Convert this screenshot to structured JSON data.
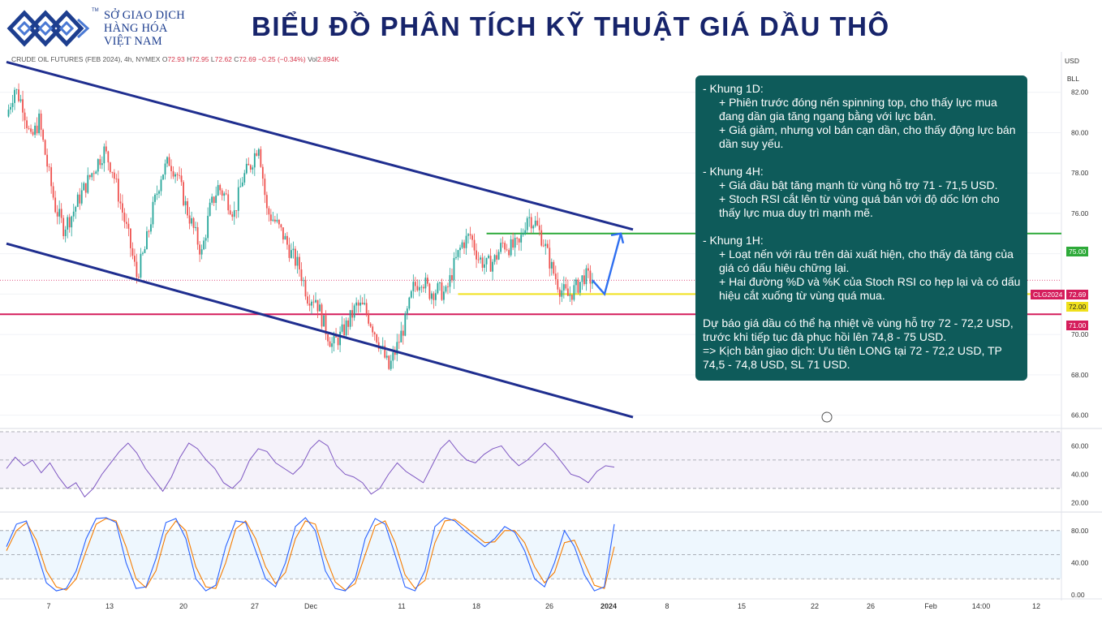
{
  "header": {
    "logo_lines": [
      "SỞ GIAO DỊCH",
      "HÀNG HÓA",
      "VIỆT NAM"
    ],
    "logo_tm": "TM",
    "title": "BIỂU ĐỒ PHÂN TÍCH KỸ THUẬT GIÁ DẦU THÔ"
  },
  "legend": {
    "symbol": "CRUDE OIL FUTURES (FEB 2024), 4h, NYMEX",
    "o_label": "O",
    "o": "72.93",
    "h_label": "H",
    "h": "72.95",
    "l_label": "L",
    "l": "72.62",
    "c_label": "C",
    "c": "72.69",
    "change": "−0.25 (−0.34%)",
    "vol_label": "Vol",
    "vol": "2.894K"
  },
  "scale_badges": {
    "currency": "USD",
    "indicator": "BLL"
  },
  "price_tags": {
    "symbol": "CLG2024",
    "last": "72.69",
    "green_level": "75.00",
    "yellow_level": "72.00",
    "red_level": "71.00"
  },
  "analysis_note": {
    "d1_title": "- Khung 1D:",
    "d1_points": [
      "+ Phiên trước đóng nến spinning top, cho thấy  lực mua đang dần gia tăng ngang bằng với lực bán.",
      "+ Giá giảm, nhưng vol bán cạn dần, cho thấy động lực bán dần suy yếu."
    ],
    "h4_title": "- Khung 4H:",
    "h4_points": [
      "+ Giá dầu bật tăng mạnh từ vùng hỗ trợ 71 - 71,5 USD.",
      "+ Stoch RSI cắt lên từ vùng quá bán với độ dốc lớn cho thấy lực mua duy trì mạnh mẽ."
    ],
    "h1_title": "- Khung 1H:",
    "h1_points": [
      "+ Loạt nến với râu trên dài xuất hiện, cho thấy đà tăng của giá có dấu hiệu chững lại.",
      "+ Hai đường %D và %K của Stoch RSI co hẹp lại và có dấu hiệu cắt xuống từ vùng quá mua."
    ],
    "forecast": "Dự báo giá dầu có thể hạ nhiệt về vùng hỗ trợ 72 - 72,2 USD, trước khi tiếp tục đà phục hồi lên 74,8 - 75 USD.",
    "plan": "=> Kịch bản giao dịch: Ưu tiên LONG tại 72 - 72,2 USD, TP 74,5 - 74,8 USD, SL 71 USD."
  },
  "chart_data": [
    {
      "type": "candlestick",
      "title": "CRUDE OIL FUTURES (FEB 2024), 4h, NYMEX",
      "x_ticks": [
        "7",
        "13",
        "20",
        "27",
        "Dec",
        "11",
        "18",
        "26",
        "2024",
        "8",
        "15",
        "22",
        "26",
        "Feb",
        "14:00",
        "12"
      ],
      "y_ticks": [
        66,
        68,
        70,
        72,
        74,
        76,
        78,
        80,
        82
      ],
      "ylim": [
        65.5,
        84.0
      ],
      "grid": true,
      "close_path": [
        [
          0,
          80.8
        ],
        [
          4,
          82.2
        ],
        [
          8,
          81.4
        ],
        [
          12,
          79.6
        ],
        [
          16,
          80.6
        ],
        [
          20,
          78.4
        ],
        [
          24,
          76.3
        ],
        [
          28,
          75.3
        ],
        [
          32,
          75.9
        ],
        [
          36,
          76.8
        ],
        [
          40,
          77.6
        ],
        [
          44,
          78.4
        ],
        [
          48,
          79.1
        ],
        [
          52,
          78.2
        ],
        [
          56,
          76.5
        ],
        [
          60,
          74.8
        ],
        [
          64,
          72.9
        ],
        [
          68,
          74.2
        ],
        [
          72,
          76.2
        ],
        [
          76,
          77.9
        ],
        [
          80,
          78.6
        ],
        [
          84,
          77.9
        ],
        [
          88,
          76.4
        ],
        [
          92,
          75.2
        ],
        [
          96,
          74.0
        ],
        [
          100,
          76.2
        ],
        [
          104,
          77.3
        ],
        [
          108,
          76.8
        ],
        [
          112,
          76.0
        ],
        [
          116,
          77.7
        ],
        [
          120,
          78.4
        ],
        [
          124,
          79.5
        ],
        [
          128,
          76.1
        ],
        [
          132,
          75.6
        ],
        [
          136,
          74.9
        ],
        [
          140,
          74.0
        ],
        [
          144,
          73.3
        ],
        [
          148,
          71.9
        ],
        [
          152,
          71.8
        ],
        [
          156,
          70.5
        ],
        [
          160,
          69.5
        ],
        [
          164,
          69.9
        ],
        [
          168,
          70.6
        ],
        [
          172,
          71.4
        ],
        [
          176,
          71.3
        ],
        [
          180,
          70.4
        ],
        [
          184,
          69.4
        ],
        [
          188,
          68.3
        ],
        [
          192,
          69.4
        ],
        [
          196,
          70.6
        ],
        [
          200,
          72.3
        ],
        [
          204,
          72.8
        ],
        [
          208,
          72.1
        ],
        [
          212,
          72.2
        ],
        [
          216,
          72.0
        ],
        [
          220,
          73.4
        ],
        [
          224,
          74.5
        ],
        [
          228,
          74.9
        ],
        [
          232,
          73.8
        ],
        [
          236,
          73.4
        ],
        [
          240,
          73.7
        ],
        [
          244,
          74.5
        ],
        [
          248,
          74.3
        ],
        [
          252,
          74.4
        ],
        [
          256,
          75.9
        ],
        [
          260,
          75.5
        ],
        [
          264,
          74.6
        ],
        [
          268,
          73.3
        ],
        [
          272,
          72.3
        ],
        [
          276,
          71.9
        ],
        [
          280,
          72.3
        ],
        [
          284,
          72.9
        ],
        [
          288,
          72.69
        ]
      ],
      "channel": {
        "upper": [
          [
            0,
            83.5
          ],
          [
            300,
            75.2
          ]
        ],
        "lower": [
          [
            0,
            74.5
          ],
          [
            300,
            65.9
          ]
        ]
      },
      "levels": [
        {
          "value": 75.0,
          "color": "#2eaa3a"
        },
        {
          "value": 72.0,
          "color": "#f0e01c"
        },
        {
          "value": 71.0,
          "color": "#d51d5c"
        }
      ],
      "last_price": 72.69,
      "forecast_path": [
        [
          288,
          72.69
        ],
        [
          294,
          72.0
        ],
        [
          302,
          75.0
        ]
      ]
    },
    {
      "type": "line",
      "name": "RSI",
      "y_ticks": [
        20,
        40,
        60
      ],
      "ylim": [
        15,
        70
      ],
      "bands": [
        30,
        50,
        70
      ],
      "color": "#7e57c2",
      "values": [
        44,
        52,
        46,
        50,
        41,
        48,
        38,
        30,
        34,
        24,
        30,
        40,
        48,
        56,
        62,
        55,
        44,
        36,
        28,
        38,
        52,
        62,
        58,
        50,
        44,
        34,
        30,
        36,
        50,
        58,
        56,
        48,
        44,
        40,
        46,
        58,
        64,
        60,
        46,
        40,
        38,
        34,
        26,
        30,
        40,
        48,
        42,
        38,
        34,
        46,
        58,
        64,
        56,
        50,
        48,
        54,
        58,
        60,
        52,
        46,
        50,
        56,
        62,
        56,
        48,
        40,
        38,
        34,
        42,
        46,
        45
      ]
    },
    {
      "type": "line",
      "name": "Stoch RSI",
      "y_ticks": [
        0,
        40,
        80
      ],
      "ylim": [
        -5,
        100
      ],
      "bands": [
        20,
        50,
        80
      ],
      "series": [
        {
          "name": "%K",
          "color": "#2962ff",
          "values": [
            60,
            88,
            92,
            55,
            15,
            5,
            8,
            30,
            70,
            95,
            96,
            90,
            40,
            8,
            10,
            45,
            90,
            95,
            70,
            20,
            5,
            12,
            60,
            92,
            90,
            55,
            20,
            10,
            40,
            85,
            96,
            80,
            30,
            8,
            5,
            20,
            70,
            95,
            88,
            50,
            10,
            5,
            30,
            85,
            96,
            92,
            80,
            70,
            60,
            70,
            85,
            78,
            55,
            20,
            10,
            40,
            80,
            60,
            25,
            5,
            10,
            88
          ]
        },
        {
          "name": "%D",
          "color": "#f57c00",
          "values": [
            55,
            80,
            90,
            68,
            30,
            10,
            6,
            20,
            55,
            88,
            95,
            92,
            60,
            20,
            9,
            30,
            75,
            92,
            80,
            35,
            10,
            8,
            40,
            82,
            92,
            70,
            35,
            14,
            28,
            70,
            92,
            88,
            48,
            16,
            6,
            14,
            50,
            86,
            92,
            65,
            25,
            8,
            18,
            65,
            92,
            94,
            85,
            75,
            65,
            66,
            80,
            80,
            65,
            35,
            15,
            28,
            65,
            68,
            40,
            12,
            8,
            60
          ]
        }
      ]
    }
  ]
}
